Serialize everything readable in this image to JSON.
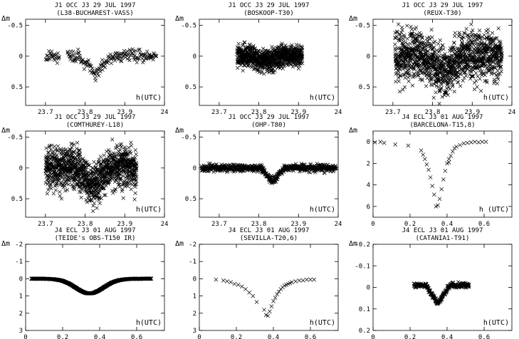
{
  "chart_data": [
    {
      "type": "scatter",
      "title": "J1 OCC J3 29 JUL 1997",
      "subtitle": "(L38-BUCHAREST-VASS)",
      "ylabel": "Δm",
      "xlabel": "h(UTC)",
      "xlim": [
        23.65,
        24.0
      ],
      "ylim": [
        -0.6,
        0.8
      ],
      "xticks": [
        23.7,
        23.8,
        23.9,
        24
      ],
      "xtick_labels": [
        "23.7",
        "23.8",
        "23.9",
        "24"
      ],
      "yticks": [
        -0.5,
        0,
        0.5
      ],
      "ytick_labels": [
        "-0.5",
        "0",
        "0.5"
      ],
      "curve": {
        "kind": "dip",
        "x_range": [
          23.7,
          23.98
        ],
        "center": 23.825,
        "width": 0.04,
        "depth": 0.3,
        "baseline": 0.0,
        "noise": 0.05,
        "n": 220,
        "gaps": [
          [
            23.735,
            23.755
          ]
        ]
      },
      "note": "single dense series of cross markers"
    },
    {
      "type": "scatter",
      "title": "J1 OCC J3 29 JUL 1997",
      "subtitle": "(BOSKOOP-T30)",
      "ylabel": "Δm",
      "xlabel": "h(UTC)",
      "xlim": [
        23.65,
        24.0
      ],
      "ylim": [
        -0.6,
        0.8
      ],
      "xticks": [
        23.7,
        23.8,
        23.9,
        24
      ],
      "xtick_labels": [
        "23.7",
        "23.8",
        "23.9",
        "24"
      ],
      "yticks": [
        -0.5,
        0,
        0.5
      ],
      "ytick_labels": [
        "-0.5",
        "0",
        "0.5"
      ],
      "curve": {
        "kind": "dip",
        "x_range": [
          23.745,
          23.91
        ],
        "center": 23.82,
        "width": 0.04,
        "depth": 0.08,
        "baseline": 0.0,
        "noise": 0.09,
        "n": 900,
        "gaps": []
      }
    },
    {
      "type": "scatter",
      "title": "J1 OCC J3 29 JUL 1997",
      "subtitle": "(REUX-T30)",
      "ylabel": "Δm",
      "xlabel": "h(UTC)",
      "xlim": [
        23.65,
        24.0
      ],
      "ylim": [
        -0.6,
        0.8
      ],
      "xticks": [
        23.7,
        23.8,
        23.9,
        24
      ],
      "xtick_labels": [
        "23.7",
        "23.8",
        "23.9",
        "24"
      ],
      "yticks": [
        -0.5,
        0,
        0.5
      ],
      "ytick_labels": [
        "-0.5",
        "0",
        "0.5"
      ],
      "curve": {
        "kind": "dip",
        "x_range": [
          23.705,
          23.975
        ],
        "center": 23.83,
        "width": 0.045,
        "depth": 0.3,
        "baseline": 0.0,
        "noise": 0.2,
        "n": 1300,
        "gaps": []
      }
    },
    {
      "type": "scatter",
      "title": "J1 OCC J3 29 JUL 1997",
      "subtitle": "(COMTHUREY-L18)",
      "ylabel": "Δm",
      "xlabel": "h(UTC)",
      "xlim": [
        23.65,
        24.0
      ],
      "ylim": [
        -0.6,
        0.8
      ],
      "xticks": [
        23.7,
        23.8,
        23.9,
        24
      ],
      "xtick_labels": [
        "23.7",
        "23.8",
        "23.9",
        "24"
      ],
      "yticks": [
        -0.5,
        0,
        0.5
      ],
      "ytick_labels": [
        "-0.5",
        "0",
        "0.5"
      ],
      "curve": {
        "kind": "dip",
        "x_range": [
          23.7,
          23.93
        ],
        "center": 23.82,
        "width": 0.045,
        "depth": 0.3,
        "baseline": 0.0,
        "noise": 0.17,
        "n": 1200,
        "gaps": []
      }
    },
    {
      "type": "scatter",
      "title": "J1 OCC J3 29 JUL 1997",
      "subtitle": "(OHP-T80)",
      "ylabel": "Δm",
      "xlabel": "h(UTC)",
      "xlim": [
        23.65,
        24.0
      ],
      "ylim": [
        -0.6,
        0.8
      ],
      "xticks": [
        23.7,
        23.8,
        23.9,
        24
      ],
      "xtick_labels": [
        "23.7",
        "23.8",
        "23.9",
        "24"
      ],
      "yticks": [
        -0.5,
        0,
        0.5
      ],
      "ytick_labels": [
        "-0.5",
        "0",
        "0.5"
      ],
      "curve": {
        "kind": "dip",
        "x_range": [
          23.655,
          23.995
        ],
        "center": 23.835,
        "width": 0.03,
        "depth": 0.22,
        "baseline": 0.0,
        "noise": 0.03,
        "n": 700,
        "gaps": []
      }
    },
    {
      "type": "scatter",
      "title": "J4 ECL J3 01 AUG 1997",
      "subtitle": "(BARCELONA-T15,8)",
      "ylabel": "Δm",
      "xlabel": "h (UTC)",
      "xlim": [
        0,
        0.75
      ],
      "ylim": [
        -1,
        7
      ],
      "xticks": [
        0,
        0.2,
        0.4,
        0.6
      ],
      "xtick_labels": [
        "0",
        "0.2",
        "0.4",
        "0.6"
      ],
      "yticks": [
        0,
        2,
        4,
        6
      ],
      "ytick_labels": [
        "0",
        "2",
        "4",
        "6"
      ],
      "points": [
        [
          0.01,
          0.05
        ],
        [
          0.04,
          0.0
        ],
        [
          0.06,
          0.1
        ],
        [
          0.12,
          0.25
        ],
        [
          0.19,
          0.35
        ],
        [
          0.26,
          0.8
        ],
        [
          0.27,
          1.2
        ],
        [
          0.28,
          1.6
        ],
        [
          0.29,
          2.1
        ],
        [
          0.3,
          2.6
        ],
        [
          0.31,
          3.3
        ],
        [
          0.32,
          4.1
        ],
        [
          0.33,
          4.9
        ],
        [
          0.34,
          6.0
        ],
        [
          0.35,
          5.9
        ],
        [
          0.36,
          5.3
        ],
        [
          0.37,
          4.4
        ],
        [
          0.38,
          3.5
        ],
        [
          0.39,
          2.7
        ],
        [
          0.4,
          2.0
        ],
        [
          0.41,
          1.6
        ],
        [
          0.41,
          1.9
        ],
        [
          0.42,
          1.3
        ],
        [
          0.43,
          0.9
        ],
        [
          0.44,
          0.6
        ],
        [
          0.45,
          0.45
        ],
        [
          0.47,
          0.3
        ],
        [
          0.49,
          0.15
        ],
        [
          0.51,
          0.1
        ],
        [
          0.53,
          0.05
        ],
        [
          0.55,
          0.0
        ],
        [
          0.57,
          0.05
        ],
        [
          0.59,
          0.0
        ],
        [
          0.61,
          0.0
        ]
      ]
    },
    {
      "type": "scatter",
      "title": "J4 ECL J3 01 AUG 1997",
      "subtitle": "(TEIDE's OBS-T150 IR)",
      "ylabel": "Δm",
      "xlabel": "h(UTC)",
      "xlim": [
        0,
        0.75
      ],
      "ylim": [
        -2,
        3
      ],
      "xticks": [
        0,
        0.2,
        0.4,
        0.6
      ],
      "xtick_labels": [
        "0",
        "0.2",
        "0.4",
        "0.6"
      ],
      "yticks": [
        -2,
        -1,
        0,
        1,
        2,
        3
      ],
      "ytick_labels": [
        "-2",
        "-1",
        "0",
        "1",
        "2",
        "3"
      ],
      "curve": {
        "kind": "gauss",
        "x_range": [
          0.03,
          0.68
        ],
        "center": 0.345,
        "width": 0.075,
        "depth": 0.85,
        "baseline": 0.0,
        "noise": 0.01,
        "n": 650,
        "gaps": []
      }
    },
    {
      "type": "scatter",
      "title": "J4 ECL J3 01 AUG 1997",
      "subtitle": "(SEVILLA-T20,6)",
      "ylabel": "Δm",
      "xlabel": "h(UTC)",
      "xlim": [
        0,
        0.75
      ],
      "ylim": [
        -2,
        3
      ],
      "xticks": [
        0,
        0.2,
        0.4,
        0.6
      ],
      "xtick_labels": [
        "0",
        "0.2",
        "0.4",
        "0.6"
      ],
      "yticks": [
        -2,
        -1,
        0,
        1,
        2,
        3
      ],
      "ytick_labels": [
        "-2",
        "-1",
        "0",
        "1",
        "2",
        "3"
      ],
      "points": [
        [
          0.09,
          0.05
        ],
        [
          0.13,
          0.1
        ],
        [
          0.15,
          0.15
        ],
        [
          0.17,
          0.2
        ],
        [
          0.19,
          0.3
        ],
        [
          0.21,
          0.35
        ],
        [
          0.23,
          0.45
        ],
        [
          0.25,
          0.6
        ],
        [
          0.27,
          0.8
        ],
        [
          0.29,
          1.0
        ],
        [
          0.31,
          1.35
        ],
        [
          0.35,
          1.8
        ],
        [
          0.36,
          2.1
        ],
        [
          0.37,
          2.15
        ],
        [
          0.38,
          1.9
        ],
        [
          0.39,
          1.6
        ],
        [
          0.4,
          1.3
        ],
        [
          0.41,
          1.1
        ],
        [
          0.42,
          0.9
        ],
        [
          0.43,
          0.75
        ],
        [
          0.44,
          0.6
        ],
        [
          0.45,
          0.5
        ],
        [
          0.46,
          0.4
        ],
        [
          0.47,
          0.35
        ],
        [
          0.48,
          0.3
        ],
        [
          0.49,
          0.25
        ],
        [
          0.5,
          0.2
        ],
        [
          0.52,
          0.15
        ],
        [
          0.54,
          0.1
        ],
        [
          0.56,
          0.1
        ],
        [
          0.58,
          0.05
        ],
        [
          0.6,
          0.05
        ],
        [
          0.62,
          0.05
        ]
      ]
    },
    {
      "type": "scatter",
      "title": "J4 ECL J3 01 AUG 1997",
      "subtitle": "(CATANIA1-T91)",
      "ylabel": "Δm",
      "xlabel": "h(UTC)",
      "xlim": [
        0,
        0.75
      ],
      "ylim": [
        -0.2,
        0.2
      ],
      "xticks": [
        0,
        0.2,
        0.4,
        0.6
      ],
      "xtick_labels": [
        "0",
        "0.2",
        "0.4",
        "0.6"
      ],
      "yticks": [
        -0.2,
        -0.1,
        0,
        0.1,
        0.2
      ],
      "ytick_labels": [
        "-0.2",
        "-0.1",
        "0",
        "0.1",
        "0.2"
      ],
      "curve": {
        "kind": "dip",
        "x_range": [
          0.22,
          0.52
        ],
        "center": 0.35,
        "width": 0.065,
        "depth": 0.085,
        "baseline": -0.01,
        "noise": 0.006,
        "n": 300,
        "gaps": []
      }
    }
  ]
}
